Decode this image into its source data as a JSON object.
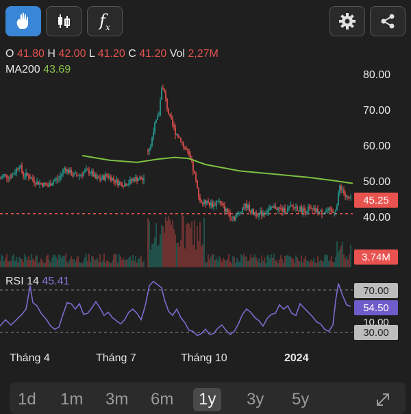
{
  "toolbar": {
    "buttons": [
      {
        "name": "gesture-icon",
        "active": true
      },
      {
        "name": "candlestick-icon",
        "active": false
      },
      {
        "name": "function-icon",
        "label": "f",
        "sub": "x",
        "active": false
      },
      {
        "name": "gear-icon",
        "active": false
      },
      {
        "name": "share-icon",
        "active": false
      }
    ]
  },
  "ohlc": {
    "o_label": "O",
    "o": "41.80",
    "h_label": "H",
    "h": "42.00",
    "l_label": "L",
    "l": "41.20",
    "c_label": "C",
    "c": "41.20",
    "vol_label": "Vol",
    "vol": "2,27M"
  },
  "ma": {
    "label": "MA200",
    "value": "43.69"
  },
  "price_axis": [
    "80.00",
    "70.00",
    "60.00",
    "50.00",
    "40.00"
  ],
  "current_price": "45.25",
  "current_volume": "3.74M",
  "rsi": {
    "label": "RSI 14",
    "value": "45.41",
    "tags": [
      "70.00",
      "54.50",
      "30.00"
    ],
    "partial_tag": "10.00"
  },
  "x_axis": [
    "Tháng 4",
    "Tháng 7",
    "Tháng 10",
    "2024"
  ],
  "ranges": [
    "1d",
    "1m",
    "3m",
    "6m",
    "1y",
    "3y",
    "5y"
  ],
  "selected_range": "1y",
  "colors": {
    "up": "#26a69a",
    "down": "#ef5350",
    "ma": "#7cc242",
    "rsi": "#7e6bd1",
    "accent": "#3a86d6"
  },
  "chart_data": {
    "type": "candlestick",
    "price_ylim": [
      37,
      82
    ],
    "price_ticks": [
      40,
      50,
      60,
      70,
      80
    ],
    "x_ticks": [
      "Tháng 4",
      "Tháng 7",
      "Tháng 10",
      "2024"
    ],
    "price_segments": [
      [
        [
          0,
          51
        ],
        [
          6,
          52
        ],
        [
          14,
          51.5
        ],
        [
          22,
          53
        ],
        [
          28,
          55
        ],
        [
          34,
          52
        ],
        [
          40,
          52
        ],
        [
          46,
          51
        ],
        [
          54,
          50
        ],
        [
          62,
          49.5
        ],
        [
          70,
          49
        ],
        [
          78,
          50.5
        ],
        [
          86,
          51
        ],
        [
          94,
          54
        ],
        [
          100,
          53
        ],
        [
          108,
          52
        ],
        [
          116,
          52
        ],
        [
          124,
          53
        ],
        [
          132,
          53
        ],
        [
          140,
          51
        ],
        [
          148,
          51
        ],
        [
          156,
          52
        ],
        [
          164,
          51
        ],
        [
          172,
          50
        ],
        [
          180,
          49.5
        ],
        [
          188,
          50
        ],
        [
          196,
          51
        ],
        [
          204,
          51
        ],
        [
          210,
          50.5
        ]
      ],
      [
        [
          216,
          59
        ],
        [
          220,
          60
        ],
        [
          224,
          65
        ],
        [
          228,
          67
        ],
        [
          232,
          69
        ],
        [
          236,
          77
        ],
        [
          240,
          75
        ],
        [
          244,
          71
        ],
        [
          248,
          68
        ],
        [
          252,
          66
        ],
        [
          256,
          64
        ],
        [
          260,
          63
        ],
        [
          264,
          62
        ],
        [
          268,
          60
        ],
        [
          272,
          59
        ],
        [
          276,
          57
        ],
        [
          280,
          55
        ],
        [
          284,
          52
        ],
        [
          288,
          48
        ],
        [
          292,
          45
        ],
        [
          296,
          44
        ],
        [
          300,
          44.5
        ],
        [
          306,
          44
        ],
        [
          312,
          43.5
        ],
        [
          318,
          45
        ],
        [
          324,
          43.5
        ],
        [
          330,
          42
        ],
        [
          336,
          41
        ],
        [
          342,
          40
        ],
        [
          348,
          41
        ],
        [
          354,
          43
        ],
        [
          360,
          43.5
        ],
        [
          366,
          42
        ],
        [
          372,
          41.5
        ],
        [
          378,
          41
        ],
        [
          384,
          41.5
        ],
        [
          390,
          42
        ],
        [
          396,
          42.5
        ],
        [
          402,
          43
        ],
        [
          408,
          42.5
        ],
        [
          414,
          42
        ],
        [
          420,
          42.5
        ],
        [
          426,
          43
        ],
        [
          432,
          43
        ],
        [
          438,
          42.5
        ],
        [
          444,
          42
        ],
        [
          450,
          42.5
        ],
        [
          456,
          42
        ],
        [
          462,
          42
        ],
        [
          468,
          41.5
        ],
        [
          474,
          42
        ],
        [
          480,
          42
        ],
        [
          486,
          41.5
        ],
        [
          492,
          43.5
        ],
        [
          496,
          49
        ],
        [
          500,
          48
        ],
        [
          504,
          46
        ],
        [
          508,
          45.5
        ],
        [
          512,
          45.25
        ]
      ]
    ],
    "ma200": [
      [
        120,
        57.5
      ],
      [
        160,
        56.2
      ],
      [
        200,
        55.6
      ],
      [
        230,
        56.5
      ],
      [
        255,
        57
      ],
      [
        275,
        56.7
      ],
      [
        300,
        55
      ],
      [
        350,
        53.2
      ],
      [
        400,
        52.3
      ],
      [
        450,
        51.4
      ],
      [
        490,
        50.4
      ],
      [
        515,
        49.7
      ]
    ],
    "reference_line": 41.2,
    "rsi_ylim": [
      15,
      80
    ],
    "rsi_levels": [
      70,
      30
    ],
    "rsi": [
      [
        0,
        36
      ],
      [
        8,
        42
      ],
      [
        16,
        37
      ],
      [
        24,
        42
      ],
      [
        32,
        47
      ],
      [
        38,
        52
      ],
      [
        44,
        74
      ],
      [
        48,
        58
      ],
      [
        54,
        55
      ],
      [
        60,
        48
      ],
      [
        68,
        42
      ],
      [
        74,
        36
      ],
      [
        80,
        33
      ],
      [
        86,
        35
      ],
      [
        92,
        47
      ],
      [
        98,
        58
      ],
      [
        104,
        57
      ],
      [
        110,
        52
      ],
      [
        116,
        57
      ],
      [
        122,
        47
      ],
      [
        128,
        48
      ],
      [
        134,
        53
      ],
      [
        140,
        59
      ],
      [
        146,
        53
      ],
      [
        152,
        46
      ],
      [
        158,
        49
      ],
      [
        164,
        44
      ],
      [
        170,
        41
      ],
      [
        176,
        38
      ],
      [
        182,
        42
      ],
      [
        188,
        49
      ],
      [
        194,
        52
      ],
      [
        200,
        48
      ],
      [
        206,
        42
      ],
      [
        212,
        55
      ],
      [
        218,
        74
      ],
      [
        224,
        78
      ],
      [
        230,
        75
      ],
      [
        236,
        72
      ],
      [
        240,
        61
      ],
      [
        246,
        50
      ],
      [
        252,
        46
      ],
      [
        258,
        52
      ],
      [
        264,
        44
      ],
      [
        270,
        39
      ],
      [
        276,
        32
      ],
      [
        282,
        31
      ],
      [
        288,
        27
      ],
      [
        294,
        29
      ],
      [
        300,
        33
      ],
      [
        306,
        28
      ],
      [
        312,
        29
      ],
      [
        318,
        34
      ],
      [
        324,
        37
      ],
      [
        330,
        32
      ],
      [
        336,
        28
      ],
      [
        342,
        31
      ],
      [
        348,
        38
      ],
      [
        354,
        47
      ],
      [
        360,
        52
      ],
      [
        366,
        49
      ],
      [
        372,
        44
      ],
      [
        378,
        41
      ],
      [
        384,
        36
      ],
      [
        390,
        43
      ],
      [
        396,
        47
      ],
      [
        402,
        48
      ],
      [
        408,
        56
      ],
      [
        414,
        52
      ],
      [
        420,
        55
      ],
      [
        426,
        48
      ],
      [
        432,
        46
      ],
      [
        438,
        57
      ],
      [
        444,
        53
      ],
      [
        450,
        49
      ],
      [
        456,
        45
      ],
      [
        462,
        40
      ],
      [
        468,
        38
      ],
      [
        474,
        33
      ],
      [
        480,
        31
      ],
      [
        486,
        37
      ],
      [
        490,
        60
      ],
      [
        494,
        76
      ],
      [
        500,
        65
      ],
      [
        506,
        56
      ],
      [
        512,
        54.5
      ]
    ]
  }
}
